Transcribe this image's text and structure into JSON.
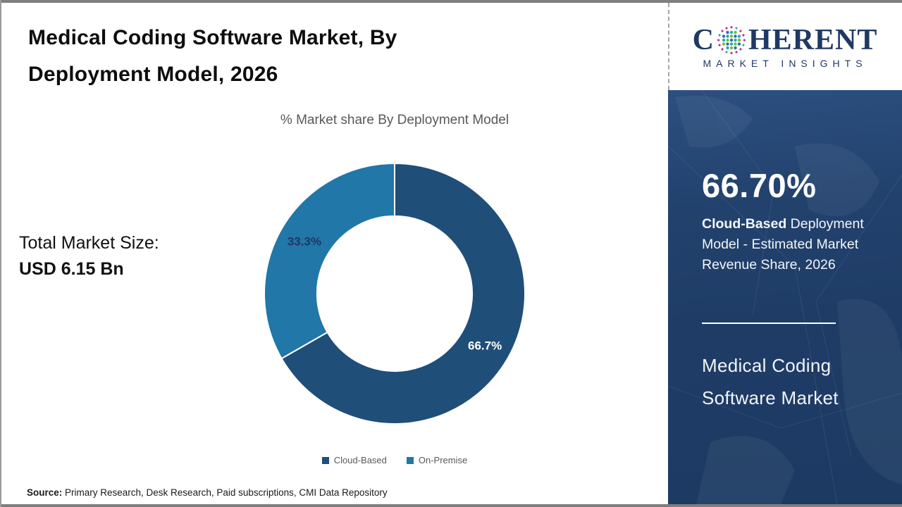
{
  "header": {
    "title": "Medical Coding Software Market, By Deployment Model, 2026"
  },
  "chart_data": {
    "type": "pie",
    "subtype": "donut",
    "title": "% Market share By Deployment Model",
    "categories": [
      "Cloud-Based",
      "On-Premise"
    ],
    "values": [
      66.7,
      33.3
    ],
    "slice_labels": [
      "66.7%",
      "33.3%"
    ],
    "colors": [
      "#1f4e79",
      "#2077a8"
    ],
    "slice_label_colors": [
      "#ffffff",
      "#1f3864"
    ],
    "start_angle_deg": 0,
    "direction": "clockwise",
    "donut_hole_ratio": 0.595,
    "legend_position": "bottom"
  },
  "total_market": {
    "label": "Total Market Size:",
    "value": "USD 6.15 Bn"
  },
  "sidebar": {
    "stat_value": "66.70%",
    "stat_desc_bold": "Cloud-Based",
    "stat_desc_rest": " Deployment Model - Estimated Market Revenue Share, 2026",
    "market_name": "Medical Coding Software Market"
  },
  "logo": {
    "word_start": "C",
    "word_end": "HERENT",
    "tagline": "MARKET INSIGHTS",
    "brand_color": "#1f3864",
    "globe_dot_colors": [
      "#2aa9a2",
      "#6fbe4a",
      "#2e6da8",
      "#c0268c"
    ]
  },
  "source": {
    "label": "Source:",
    "text": " Primary Research, Desk Research, Paid subscriptions, CMI Data Repository"
  }
}
